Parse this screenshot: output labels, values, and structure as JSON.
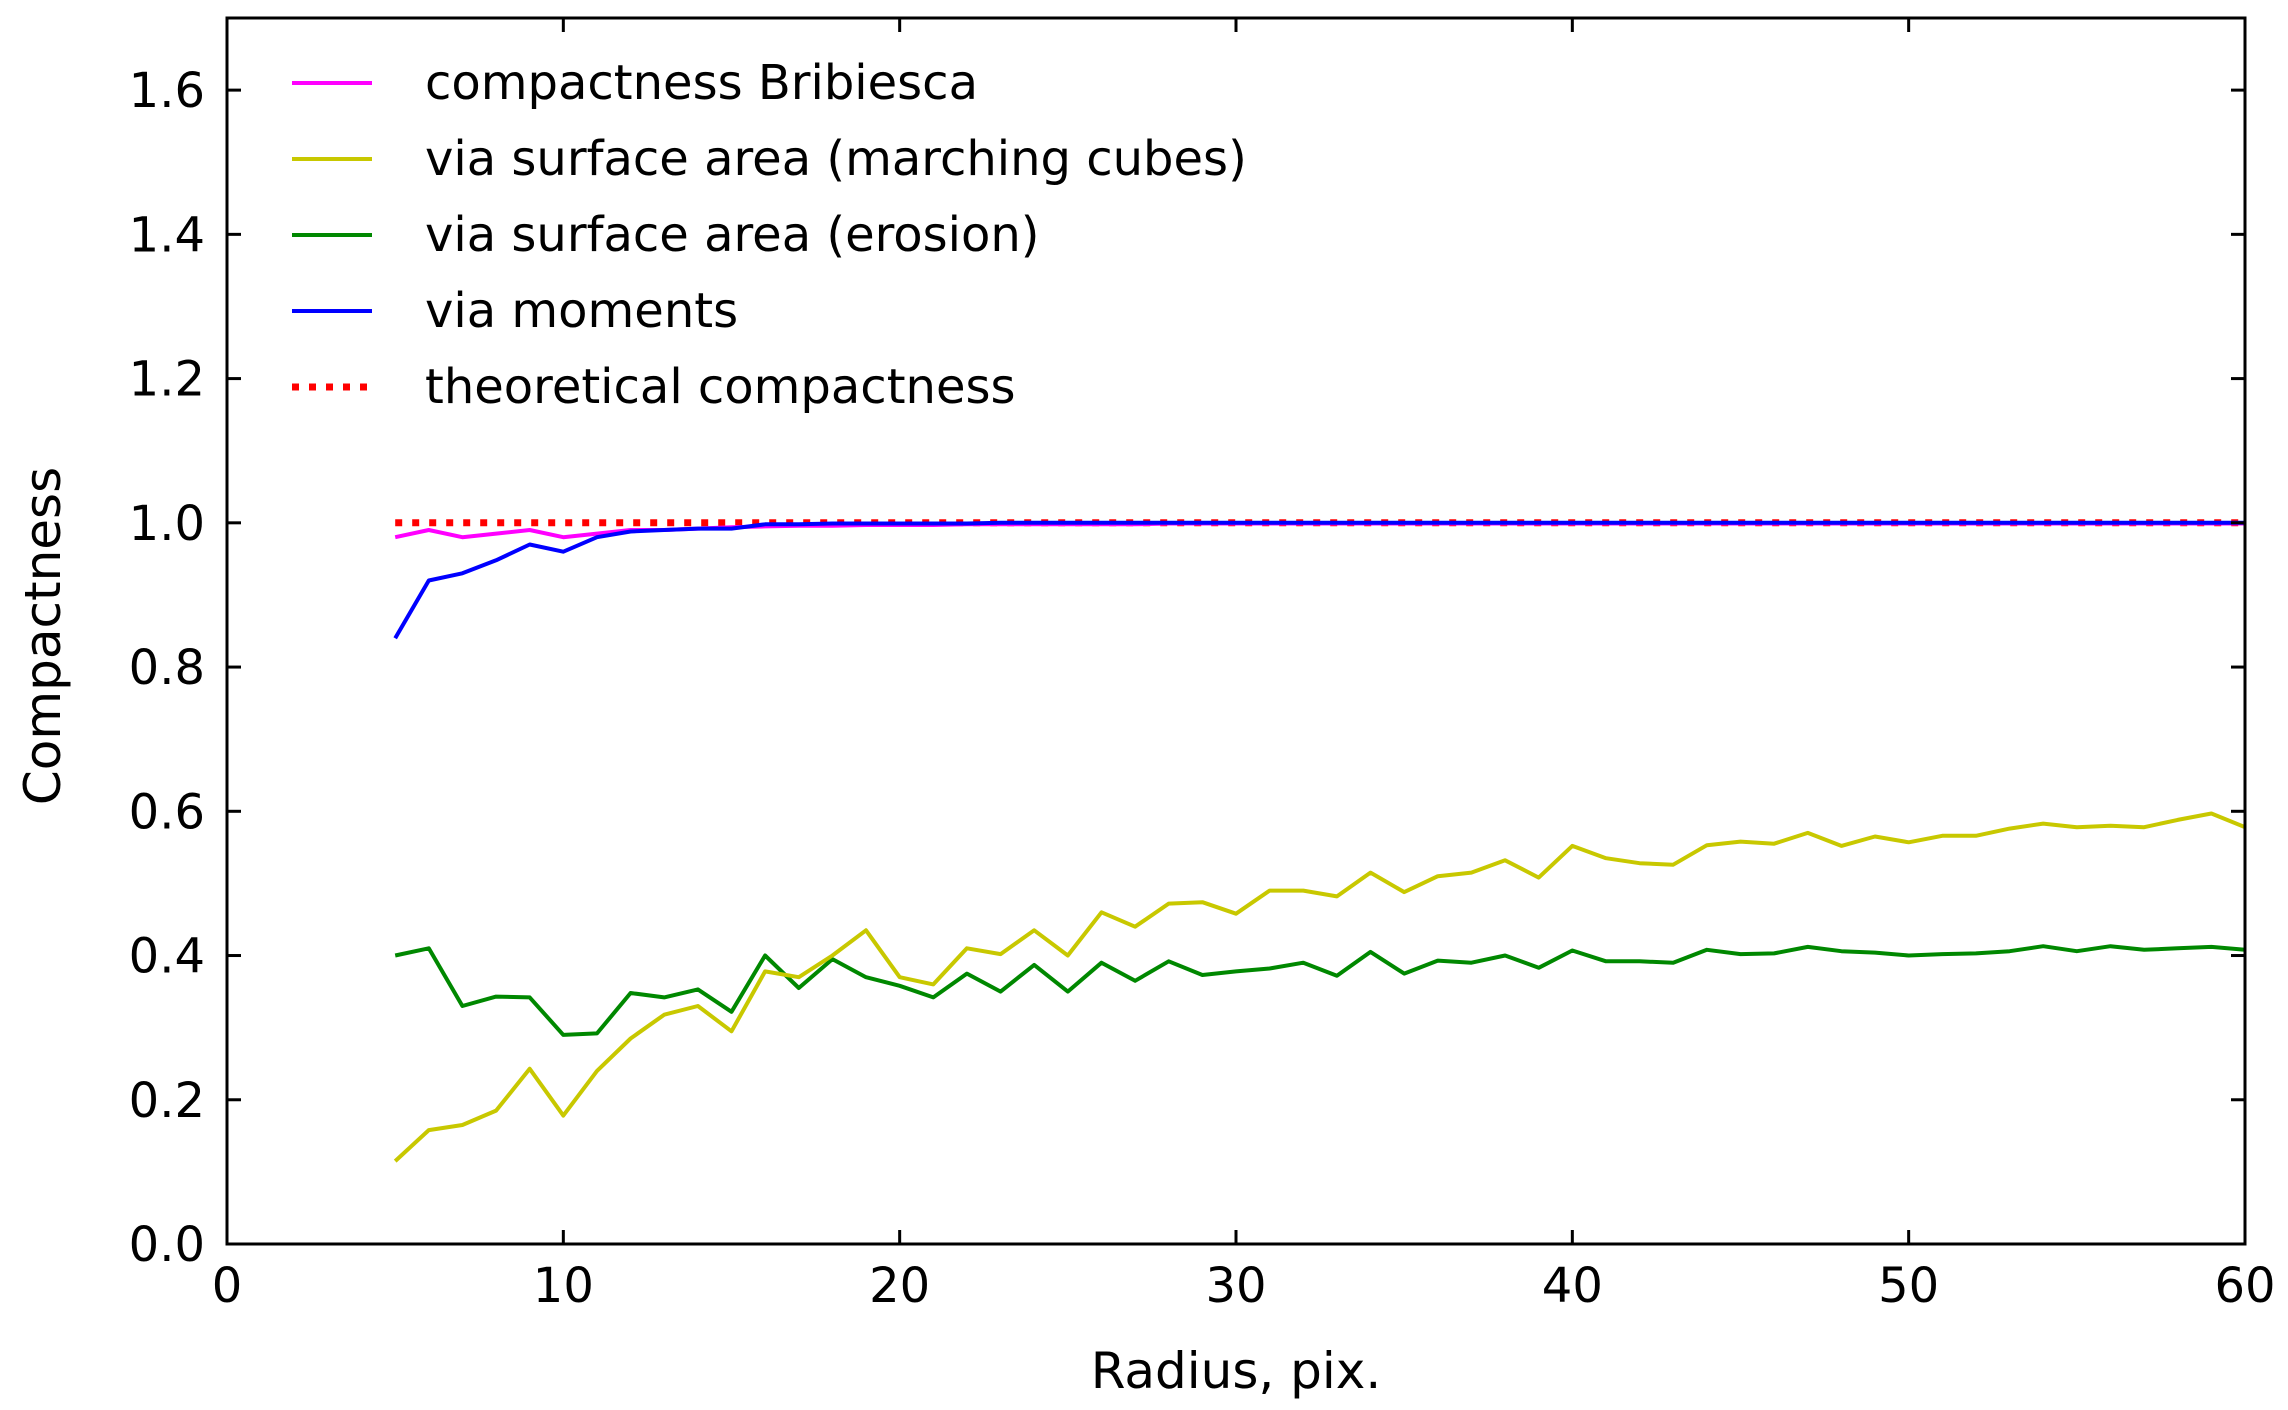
{
  "chart_data": {
    "type": "line",
    "title": "",
    "xlabel": "Radius, pix.",
    "ylabel": "Compactness",
    "xlim": [
      0,
      60
    ],
    "ylim": [
      0.0,
      1.7
    ],
    "xticks": [
      0,
      10,
      20,
      30,
      40,
      50,
      60
    ],
    "xtick_labels": [
      "0",
      "10",
      "20",
      "30",
      "40",
      "50",
      "60"
    ],
    "yticks": [
      0.0,
      0.2,
      0.4,
      0.6,
      0.8,
      1.0,
      1.2,
      1.4,
      1.6
    ],
    "ytick_labels": [
      "0.0",
      "0.2",
      "0.4",
      "0.6",
      "0.8",
      "1.0",
      "1.2",
      "1.4",
      "1.6"
    ],
    "legend_position": "top-left",
    "grid": false,
    "x": [
      5,
      6,
      7,
      8,
      9,
      10,
      11,
      12,
      13,
      14,
      15,
      16,
      17,
      18,
      19,
      20,
      21,
      22,
      23,
      24,
      25,
      26,
      27,
      28,
      29,
      30,
      31,
      32,
      33,
      34,
      35,
      36,
      37,
      38,
      39,
      40,
      41,
      42,
      43,
      44,
      45,
      46,
      47,
      48,
      49,
      50,
      51,
      52,
      53,
      54,
      55,
      56,
      57,
      58,
      59,
      60
    ],
    "series": [
      {
        "name": "compactness Bribiesca",
        "color": "#ff00ff",
        "style": "solid",
        "values": [
          0.98,
          0.99,
          0.98,
          0.985,
          0.99,
          0.98,
          0.985,
          0.99,
          0.99,
          0.992,
          0.994,
          0.995,
          0.996,
          0.996,
          0.997,
          0.997,
          0.997,
          0.998,
          0.998,
          0.998,
          0.998,
          0.998,
          0.998,
          0.999,
          0.999,
          0.999,
          0.999,
          0.999,
          0.999,
          0.999,
          0.999,
          0.999,
          0.999,
          0.999,
          0.999,
          0.999,
          0.999,
          0.999,
          0.999,
          0.999,
          0.999,
          0.999,
          0.999,
          0.999,
          0.999,
          0.999,
          0.999,
          0.999,
          0.999,
          0.999,
          0.999,
          0.999,
          0.999,
          0.999,
          0.999,
          0.999
        ]
      },
      {
        "name": "via surface area (marching cubes)",
        "color": "#c8c800",
        "style": "solid",
        "values": [
          0.115,
          0.158,
          0.165,
          0.185,
          0.243,
          0.178,
          0.24,
          0.285,
          0.318,
          0.33,
          0.295,
          0.378,
          0.37,
          0.4,
          0.435,
          0.37,
          0.36,
          0.41,
          0.402,
          0.435,
          0.4,
          0.46,
          0.44,
          0.472,
          0.474,
          0.458,
          0.49,
          0.49,
          0.482,
          0.515,
          0.488,
          0.51,
          0.515,
          0.532,
          0.508,
          0.552,
          0.535,
          0.528,
          0.526,
          0.553,
          0.558,
          0.555,
          0.57,
          0.552,
          0.565,
          0.557,
          0.566,
          0.566,
          0.576,
          0.583,
          0.578,
          0.58,
          0.578,
          0.588,
          0.597,
          0.578
        ]
      },
      {
        "name": "via surface area (erosion)",
        "color": "#008800",
        "style": "solid",
        "values": [
          0.4,
          0.41,
          0.33,
          0.343,
          0.342,
          0.29,
          0.292,
          0.348,
          0.342,
          0.353,
          0.322,
          0.4,
          0.355,
          0.395,
          0.37,
          0.358,
          0.342,
          0.375,
          0.35,
          0.387,
          0.35,
          0.39,
          0.365,
          0.392,
          0.373,
          0.378,
          0.382,
          0.39,
          0.372,
          0.405,
          0.375,
          0.393,
          0.39,
          0.4,
          0.383,
          0.407,
          0.392,
          0.392,
          0.39,
          0.408,
          0.402,
          0.403,
          0.412,
          0.406,
          0.404,
          0.4,
          0.402,
          0.403,
          0.406,
          0.413,
          0.406,
          0.413,
          0.408,
          0.41,
          0.412,
          0.408
        ]
      },
      {
        "name": "via moments",
        "color": "#0000ff",
        "style": "solid",
        "values": [
          0.84,
          0.92,
          0.93,
          0.948,
          0.97,
          0.96,
          0.98,
          0.988,
          0.99,
          0.992,
          0.992,
          0.998,
          0.998,
          0.999,
          0.999,
          0.999,
          0.999,
          0.999,
          1.0,
          1.0,
          1.0,
          1.0,
          1.0,
          1.0,
          1.0,
          1.0,
          1.0,
          1.0,
          1.0,
          1.0,
          1.0,
          1.0,
          1.0,
          1.0,
          1.0,
          1.0,
          1.0,
          1.0,
          1.0,
          1.0,
          1.0,
          1.0,
          1.0,
          1.0,
          1.0,
          1.0,
          1.0,
          1.0,
          1.0,
          1.0,
          1.0,
          1.0,
          1.0,
          1.0,
          1.0,
          1.0
        ]
      },
      {
        "name": "theoretical compactness",
        "color": "#ff0000",
        "style": "dotted",
        "values": [
          1.0,
          1.0,
          1.0,
          1.0,
          1.0,
          1.0,
          1.0,
          1.0,
          1.0,
          1.0,
          1.0,
          1.0,
          1.0,
          1.0,
          1.0,
          1.0,
          1.0,
          1.0,
          1.0,
          1.0,
          1.0,
          1.0,
          1.0,
          1.0,
          1.0,
          1.0,
          1.0,
          1.0,
          1.0,
          1.0,
          1.0,
          1.0,
          1.0,
          1.0,
          1.0,
          1.0,
          1.0,
          1.0,
          1.0,
          1.0,
          1.0,
          1.0,
          1.0,
          1.0,
          1.0,
          1.0,
          1.0,
          1.0,
          1.0,
          1.0,
          1.0,
          1.0,
          1.0,
          1.0,
          1.0,
          1.0
        ]
      }
    ]
  }
}
